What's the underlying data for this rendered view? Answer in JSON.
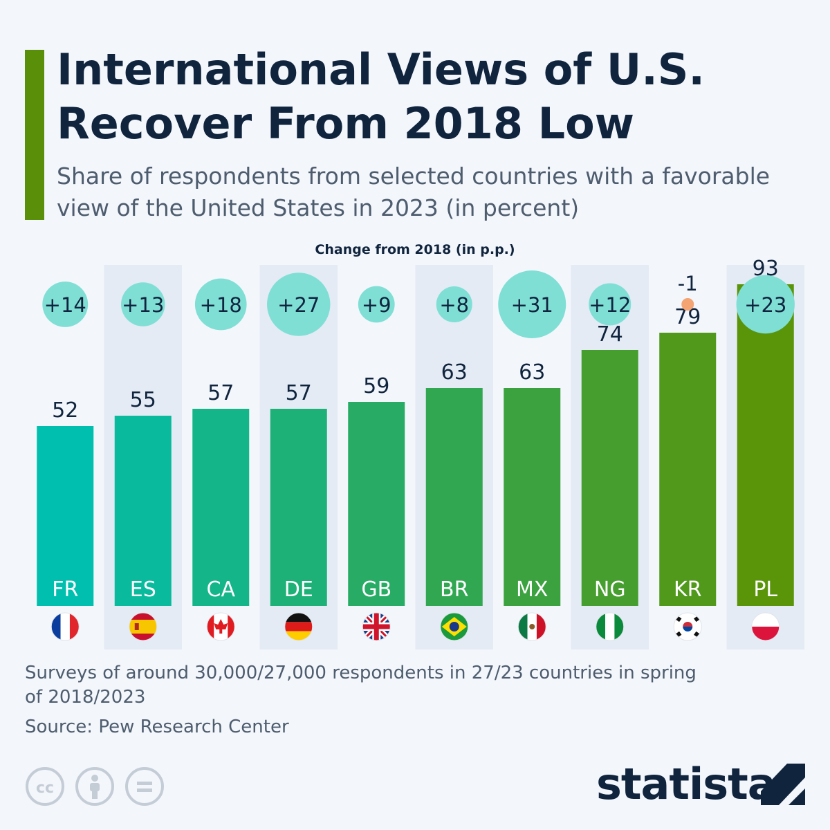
{
  "header": {
    "title": "International Views of U.S. Recover From 2018 Low",
    "subtitle": "Share of respondents from selected countries with a favorable view of the United States in 2023 (in percent)"
  },
  "chart_data": {
    "type": "bar",
    "categories": [
      "FR",
      "ES",
      "CA",
      "DE",
      "GB",
      "BR",
      "MX",
      "NG",
      "KR",
      "PL"
    ],
    "values": [
      52,
      55,
      57,
      57,
      59,
      63,
      63,
      74,
      79,
      93
    ],
    "series": [
      {
        "values": [
          52,
          55,
          57,
          57,
          59,
          63,
          63,
          74,
          79,
          93
        ]
      }
    ],
    "change_label": "Change from 2018 (in p.p.)",
    "changes": [
      14,
      13,
      18,
      27,
      9,
      8,
      31,
      12,
      -1,
      23
    ],
    "change_labels": [
      "+14",
      "+13",
      "+18",
      "+27",
      "+9",
      "+8",
      "+31",
      "+12",
      "-1",
      "+23"
    ],
    "flags": [
      "france-flag",
      "spain-flag",
      "canada-flag",
      "germany-flag",
      "uk-flag",
      "brazil-flag",
      "mexico-flag",
      "nigeria-flag",
      "south-korea-flag",
      "poland-flag"
    ],
    "ylim": [
      0,
      100
    ],
    "grid": false,
    "colors": {
      "bar_start": "#00bfae",
      "bar_end": "#5a9409",
      "positive_bubble": "#7fdfd5",
      "negative_bubble": "#f4a372",
      "column_shade": "#e4ebf5",
      "text": "#10243e"
    }
  },
  "footer": {
    "note": "Surveys of around 30,000/27,000 respondents in 27/23 countries in spring of 2018/2023",
    "source": "Source: Pew Research Center",
    "brand": "statista",
    "license_icons": [
      "creative-commons-icon",
      "attribution-icon",
      "no-derivatives-icon"
    ]
  },
  "accent_color": "#5a8f0a"
}
